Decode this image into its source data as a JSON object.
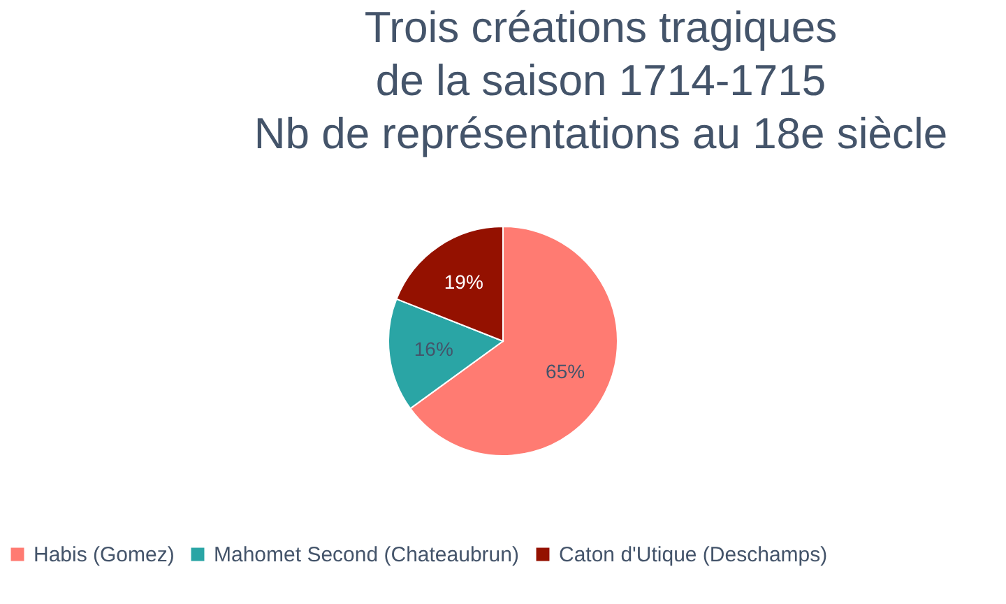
{
  "chart_data": {
    "type": "pie",
    "title": [
      "Trois créations tragiques",
      "de la saison 1714-1715",
      "Nb de représentations au 18e siècle"
    ],
    "categories": [
      "Habis (Gomez)",
      "Mahomet Second (Chateaubrun)",
      "Caton d'Utique (Deschamps)"
    ],
    "values": [
      65,
      16,
      19
    ],
    "colors": [
      "#ff7b72",
      "#2aa5a5",
      "#941100"
    ],
    "value_labels": [
      "65%",
      "16%",
      "19%"
    ],
    "legend": "bottom"
  }
}
